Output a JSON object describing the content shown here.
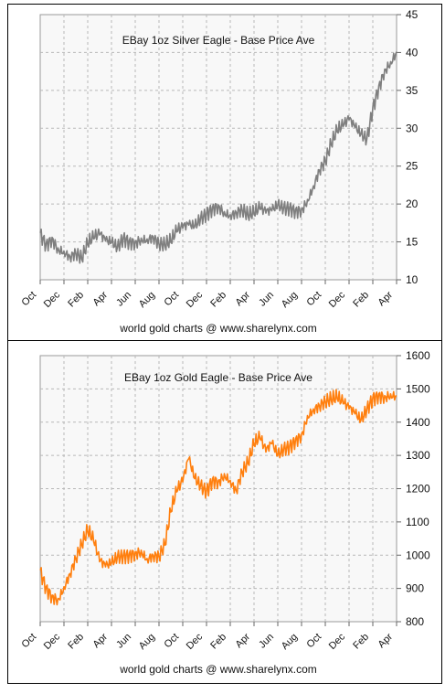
{
  "chart_data": [
    {
      "type": "line",
      "title": "EBay 1oz Silver Eagle - Base Price Ave",
      "footer": "world gold charts @ www.sharelynx.com",
      "xlabel": "",
      "ylabel": "",
      "x_tick_labels": [
        "Oct",
        "Dec",
        "Feb",
        "Apr",
        "Jun",
        "Aug",
        "Oct",
        "Dec",
        "Feb",
        "Apr",
        "Jun",
        "Aug",
        "Oct",
        "Dec",
        "Feb",
        "Apr"
      ],
      "ylim": [
        10,
        45
      ],
      "y_ticks": [
        10,
        15,
        20,
        25,
        30,
        35,
        40,
        45
      ],
      "grid": true,
      "y_axis_side": "right",
      "series": [
        {
          "color": "#7f7f7f",
          "x_month_index": [
            0,
            0.5,
            1,
            1.5,
            2,
            2.5,
            3,
            3.5,
            4,
            4.5,
            5,
            5.5,
            6,
            6.5,
            7,
            7.5,
            8,
            8.5,
            9,
            9.5,
            10,
            10.5,
            11,
            11.5,
            12,
            12.5,
            13,
            13.5,
            14,
            14.5,
            15,
            15.5,
            16,
            16.5,
            17,
            17.5,
            18,
            18.5,
            19,
            19.5,
            20,
            20.5,
            21,
            21.5,
            22,
            22.5,
            23,
            23.5,
            24,
            24.5,
            25,
            25.5,
            26,
            26.5,
            27,
            27.5,
            28,
            28.5,
            29,
            29.5,
            30
          ],
          "values": [
            16.2,
            14.8,
            15.6,
            14.2,
            13.8,
            13.1,
            13.5,
            12.7,
            14.6,
            15.4,
            15.9,
            15.1,
            14.9,
            14.3,
            15.6,
            15.2,
            15.1,
            15.5,
            15.4,
            15.7,
            14.7,
            14.5,
            14.9,
            16.3,
            16.8,
            17.2,
            17.0,
            18.1,
            18.8,
            19.6,
            19.9,
            19.0,
            18.6,
            18.9,
            19.2,
            18.4,
            18.6,
            19.3,
            18.8,
            19.1,
            19.8,
            19.5,
            19.6,
            19.3,
            19.4,
            20.6,
            22.4,
            24.5,
            25.6,
            27.8,
            29.5,
            30.2,
            31.1,
            30.1,
            29.2,
            28.6,
            32.8,
            35.6,
            37.8,
            38.8,
            40.1
          ]
        }
      ]
    },
    {
      "type": "line",
      "title": "EBay 1oz Gold Eagle - Base Price Ave",
      "footer": "world gold charts @ www.sharelynx.com",
      "xlabel": "",
      "ylabel": "",
      "x_tick_labels": [
        "Oct",
        "Dec",
        "Feb",
        "Apr",
        "Jun",
        "Aug",
        "Oct",
        "Dec",
        "Feb",
        "Apr",
        "Jun",
        "Aug",
        "Oct",
        "Dec",
        "Feb",
        "Apr"
      ],
      "ylim": [
        800,
        1600
      ],
      "y_ticks": [
        800,
        900,
        1000,
        1100,
        1200,
        1300,
        1400,
        1500,
        1600
      ],
      "grid": true,
      "y_axis_side": "right",
      "series": [
        {
          "color": "#ff7f0e",
          "x_month_index": [
            0,
            0.5,
            1,
            1.5,
            2,
            2.5,
            3,
            3.5,
            4,
            4.5,
            5,
            5.5,
            6,
            6.5,
            7,
            7.5,
            8,
            8.5,
            9,
            9.5,
            10,
            10.5,
            11,
            11.5,
            12,
            12.5,
            13,
            13.5,
            14,
            14.5,
            15,
            15.5,
            16,
            16.5,
            17,
            17.5,
            18,
            18.5,
            19,
            19.5,
            20,
            20.5,
            21,
            21.5,
            22,
            22.5,
            23,
            23.5,
            24,
            24.5,
            25,
            25.5,
            26,
            26.5,
            27,
            27.5,
            28,
            28.5,
            29,
            29.5,
            30
          ],
          "values": [
            955,
            905,
            880,
            870,
            905,
            945,
            990,
            1030,
            1070,
            1040,
            980,
            965,
            975,
            995,
            1000,
            1005,
            1010,
            1015,
            990,
            1000,
            995,
            1030,
            1130,
            1190,
            1220,
            1290,
            1230,
            1210,
            1195,
            1230,
            1225,
            1245,
            1225,
            1195,
            1250,
            1275,
            1330,
            1350,
            1310,
            1335,
            1300,
            1320,
            1330,
            1350,
            1365,
            1420,
            1440,
            1450,
            1460,
            1465,
            1470,
            1455,
            1440,
            1425,
            1405,
            1440,
            1475,
            1485,
            1480,
            1485,
            1480
          ]
        }
      ]
    }
  ]
}
